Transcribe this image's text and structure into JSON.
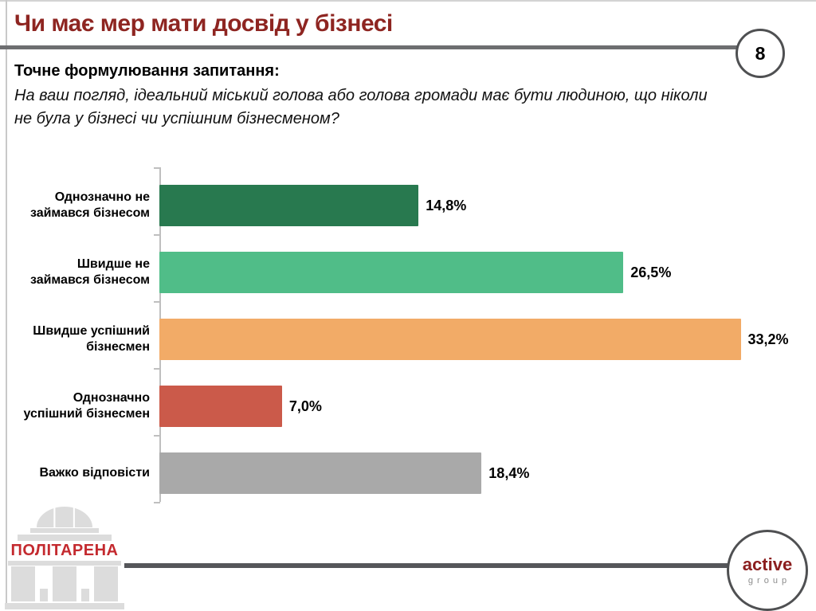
{
  "header": {
    "title": "Чи має мер мати досвід у бізнесі",
    "page_number": "8"
  },
  "question": {
    "label": "Точне формулювання запитання:",
    "text": "На ваш погляд, ідеальний міський голова або голова громади має бути людиною, що ніколи\nне була у бізнесі чи успішним бізнесменом?"
  },
  "chart_data": {
    "type": "bar",
    "orientation": "horizontal",
    "categories": [
      "Однозначно не\nзаймався бізнесом",
      "Швидше не\nзаймався бізнесом",
      "Швидше успішний\nбізнесмен",
      "Однозначно\nуспішний бізнесмен",
      "Важко відповісти"
    ],
    "values": [
      14.8,
      26.5,
      33.2,
      7.0,
      18.4
    ],
    "value_labels": [
      "14,8%",
      "26,5%",
      "33,2%",
      "7,0%",
      "18,4%"
    ],
    "bar_colors": [
      "#28794f",
      "#50bd88",
      "#f2ab67",
      "#cb5a4a",
      "#a9a9a9"
    ],
    "xlim": [
      0,
      37.5
    ],
    "grid": false,
    "legend": false,
    "title": "",
    "xlabel": "",
    "ylabel": ""
  },
  "footer": {
    "politarena_text": "ПОЛІТАРЕНА",
    "active_group_line1": "active",
    "active_group_line2": "group"
  },
  "colors": {
    "title_red": "#8e2521",
    "header_rule_gray": "#6d6e70",
    "footer_rule_gray": "#55565a",
    "circle_border_gray": "#4f5052",
    "politarena_red": "#c42a2f",
    "logo_gray": "#dcdcdc",
    "active_red": "#8b1e1e"
  }
}
